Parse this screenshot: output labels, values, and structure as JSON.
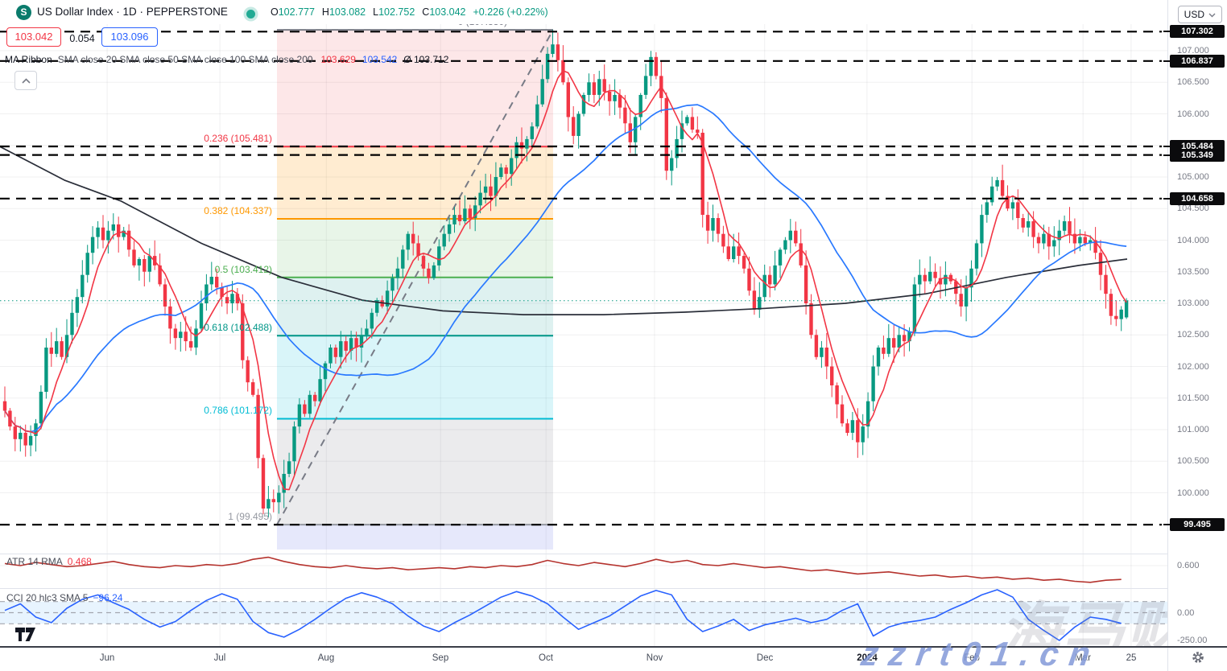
{
  "header": {
    "symbol_logo": "S",
    "title": "US Dollar Index · 1D · PEPPERSTONE",
    "ohlc": {
      "o_label": "O",
      "o_value": "102.777",
      "h_label": "H",
      "h_value": "103.082",
      "l_label": "L",
      "l_value": "102.752",
      "c_label": "C",
      "c_value": "103.042",
      "change": "+0.226 (+0.22%)"
    },
    "sell_price": "103.042",
    "spread": "0.054",
    "buy_price": "103.096",
    "ma_ribbon": {
      "name": "MA Ribbon",
      "params": "SMA close 20 SMA close 50 SMA close 100 SMA close 200",
      "value_fast": "103.629",
      "value_mid": "103.542",
      "value_avg": "Ø 103.712"
    },
    "currency_selector": "USD"
  },
  "indicators": {
    "atr_label": "ATR 14 RMA",
    "atr_value": "0.468",
    "cci_label": "CCI 20 hlc3 SMA 5",
    "cci_value": "−96.24"
  },
  "axes": {
    "price_ticks": [
      {
        "label": "107.000",
        "price": 107.0
      },
      {
        "label": "106.500",
        "price": 106.5
      },
      {
        "label": "106.000",
        "price": 106.0
      },
      {
        "label": "105.000",
        "price": 105.0
      },
      {
        "label": "104.500",
        "price": 104.5
      },
      {
        "label": "104.000",
        "price": 104.0
      },
      {
        "label": "103.500",
        "price": 103.5
      },
      {
        "label": "103.000",
        "price": 103.0
      },
      {
        "label": "102.500",
        "price": 102.5
      },
      {
        "label": "102.000",
        "price": 102.0
      },
      {
        "label": "101.500",
        "price": 101.5
      },
      {
        "label": "101.000",
        "price": 101.0
      },
      {
        "label": "100.500",
        "price": 100.5
      },
      {
        "label": "100.000",
        "price": 100.0
      }
    ],
    "price_badges": [
      {
        "label": "107.302",
        "price": 107.302
      },
      {
        "label": "106.837",
        "price": 106.837
      },
      {
        "label": "105.484",
        "price": 105.484
      },
      {
        "label": "105.349",
        "price": 105.349
      },
      {
        "label": "104.658",
        "price": 104.658
      },
      {
        "label": "99.495",
        "price": 99.495
      }
    ],
    "atr_ticks": [
      {
        "label": "0.600",
        "value": 0.6
      }
    ],
    "cci_ticks": [
      {
        "label": "0.00",
        "value": 0
      },
      {
        "label": "-250.00",
        "value": -250
      }
    ],
    "time_ticks": [
      {
        "label": "Jun",
        "i": 19.8
      },
      {
        "label": "Jul",
        "i": 41.6
      },
      {
        "label": "Aug",
        "i": 62.2
      },
      {
        "label": "Sep",
        "i": 84.3
      },
      {
        "label": "Oct",
        "i": 104.7
      },
      {
        "label": "Nov",
        "i": 125.7
      },
      {
        "label": "Dec",
        "i": 147.0
      },
      {
        "label": "2024",
        "i": 166.8,
        "bold": true
      },
      {
        "label": "Feb",
        "i": 187.1
      },
      {
        "label": "Mar",
        "i": 208.6
      },
      {
        "label": "25",
        "i": 217.9
      }
    ]
  },
  "watermarks": {
    "cjk": "海马财经",
    "site": "zzrt01.cn"
  },
  "colors": {
    "up": "#089981",
    "down": "#f23645",
    "ma_fast": "#f23645",
    "ma_mid": "#2979ff",
    "ma_slow": "#2a2e39",
    "atr": "#b5332e",
    "cci": "#2962ff",
    "grid": "rgba(42,46,57,0.07)",
    "alert": "#000000",
    "trend": "#787b86",
    "badge_bg": "#0b0b0d",
    "cci_band": "rgba(33,150,243,0.10)"
  },
  "chart_data": {
    "type": "candlestick",
    "symbol": "US Dollar Index",
    "timeframe": "1D",
    "broker": "PEPPERSTONE",
    "ylim": [
      99.1,
      107.45
    ],
    "x_labels": [
      "Jun",
      "Jul",
      "Aug",
      "Sep",
      "Oct",
      "Nov",
      "Dec",
      "2024",
      "Feb",
      "Mar",
      "25"
    ],
    "first_open": 101.45,
    "closes": [
      101.3,
      101.05,
      100.85,
      100.95,
      100.75,
      100.9,
      101.1,
      101.6,
      102.3,
      102.2,
      102.4,
      102.15,
      102.5,
      102.85,
      103.1,
      103.45,
      103.8,
      104.05,
      104.2,
      104.0,
      104.15,
      104.25,
      104.05,
      104.15,
      103.85,
      103.6,
      103.7,
      103.5,
      103.75,
      103.6,
      103.3,
      102.95,
      102.6,
      102.45,
      102.55,
      102.4,
      102.3,
      102.6,
      103.0,
      103.3,
      103.42,
      103.25,
      103.1,
      103.0,
      103.15,
      103.0,
      102.1,
      101.75,
      101.55,
      100.55,
      99.75,
      99.9,
      99.85,
      100.0,
      100.3,
      100.5,
      101.05,
      101.4,
      101.25,
      101.55,
      101.45,
      101.8,
      102.05,
      102.3,
      102.15,
      102.4,
      102.25,
      102.45,
      102.3,
      102.5,
      102.6,
      102.85,
      103.05,
      102.95,
      103.2,
      103.4,
      103.55,
      103.85,
      104.1,
      103.95,
      103.75,
      103.55,
      103.4,
      103.6,
      103.9,
      104.1,
      104.25,
      104.4,
      104.3,
      104.5,
      104.35,
      104.55,
      104.75,
      104.85,
      104.7,
      105.0,
      105.15,
      105.05,
      105.3,
      105.55,
      105.45,
      105.6,
      105.8,
      106.15,
      106.55,
      106.95,
      107.1,
      106.85,
      106.5,
      105.95,
      105.65,
      106.0,
      106.3,
      106.5,
      106.3,
      106.55,
      106.35,
      106.2,
      106.3,
      106.1,
      105.85,
      105.55,
      105.95,
      106.3,
      106.6,
      106.9,
      106.6,
      106.25,
      105.1,
      105.3,
      105.6,
      105.85,
      105.95,
      105.75,
      105.7,
      104.4,
      104.15,
      104.35,
      104.1,
      103.9,
      103.7,
      103.9,
      103.75,
      103.55,
      103.2,
      102.9,
      103.1,
      103.45,
      103.3,
      103.6,
      103.85,
      104.0,
      104.15,
      103.95,
      103.6,
      103.0,
      102.5,
      102.15,
      102.3,
      102.0,
      101.7,
      101.4,
      101.1,
      100.95,
      101.15,
      100.8,
      101.05,
      101.45,
      102.0,
      102.3,
      102.2,
      102.45,
      102.3,
      102.5,
      102.4,
      102.55,
      103.3,
      103.45,
      103.35,
      103.5,
      103.4,
      103.3,
      103.45,
      103.35,
      103.15,
      102.95,
      103.25,
      103.55,
      103.95,
      104.4,
      104.6,
      104.85,
      104.95,
      104.7,
      104.5,
      104.6,
      104.35,
      104.2,
      104.3,
      104.05,
      103.95,
      104.1,
      103.9,
      104.0,
      104.15,
      104.3,
      104.1,
      103.95,
      104.05,
      103.95,
      104.0,
      103.8,
      103.45,
      103.15,
      102.8,
      102.75,
      102.9,
      103.04
    ],
    "last_ohlc": {
      "open": 102.777,
      "high": 103.082,
      "low": 102.752,
      "close": 103.042,
      "change": 0.226,
      "change_pct": 0.22
    },
    "price_line": 103.042,
    "alert_levels": [
      107.302,
      106.837,
      105.484,
      105.349,
      104.658,
      99.495
    ],
    "ma_ribbon_values": {
      "sma_fast": 103.629,
      "sma_mid": 103.542,
      "average": 103.712
    },
    "fib": {
      "x_range": [
        344,
        687
      ],
      "trend": [
        [
          344,
          99.495
        ],
        [
          687,
          107.33
        ]
      ],
      "levels": [
        {
          "label": "0 (107.330)",
          "value": 0,
          "price": 107.33,
          "color": "#787b86",
          "fill": "rgba(242,54,69,0.12)"
        },
        {
          "label": "0.236 (105.481)",
          "value": 0.236,
          "price": 105.481,
          "color": "#f23645",
          "fill": "rgba(255,152,0,0.18)"
        },
        {
          "label": "0.382 (104.337)",
          "value": 0.382,
          "price": 104.337,
          "color": "#ff9800",
          "fill": "rgba(76,175,80,0.13)"
        },
        {
          "label": "0.5 (103.412)",
          "value": 0.5,
          "price": 103.412,
          "color": "#4caf50",
          "fill": "rgba(0,150,136,0.13)"
        },
        {
          "label": "0.618 (102.488)",
          "value": 0.618,
          "price": 102.488,
          "color": "#009688",
          "fill": "rgba(0,188,212,0.15)"
        },
        {
          "label": "0.786 (101.172)",
          "value": 0.786,
          "price": 101.172,
          "color": "#00bcd4",
          "fill": "rgba(120,123,134,0.15)"
        },
        {
          "label": "1 (99.495)",
          "value": 1,
          "price": 99.495,
          "color": "#9598a1",
          "fill": "rgba(98,110,232,0.16)"
        }
      ]
    },
    "sma200_path": [
      [
        0,
        105.48
      ],
      [
        80,
        104.95
      ],
      [
        150,
        104.62
      ],
      [
        250,
        103.95
      ],
      [
        350,
        103.41
      ],
      [
        450,
        103.05
      ],
      [
        550,
        102.88
      ],
      [
        650,
        102.82
      ],
      [
        750,
        102.82
      ],
      [
        850,
        102.86
      ],
      [
        950,
        102.92
      ],
      [
        1050,
        103.0
      ],
      [
        1150,
        103.15
      ],
      [
        1250,
        103.41
      ],
      [
        1340,
        103.6
      ],
      [
        1400,
        103.7
      ]
    ],
    "atr_series": {
      "name": "ATR 14 RMA",
      "last": 0.468,
      "step": 3,
      "values": [
        0.62,
        0.6,
        0.63,
        0.61,
        0.59,
        0.6,
        0.62,
        0.64,
        0.61,
        0.59,
        0.58,
        0.6,
        0.59,
        0.61,
        0.6,
        0.62,
        0.66,
        0.68,
        0.64,
        0.61,
        0.59,
        0.58,
        0.6,
        0.58,
        0.57,
        0.58,
        0.56,
        0.57,
        0.58,
        0.57,
        0.59,
        0.58,
        0.6,
        0.59,
        0.61,
        0.65,
        0.62,
        0.6,
        0.63,
        0.61,
        0.59,
        0.62,
        0.66,
        0.63,
        0.65,
        0.61,
        0.6,
        0.62,
        0.6,
        0.58,
        0.59,
        0.57,
        0.55,
        0.56,
        0.54,
        0.52,
        0.53,
        0.54,
        0.52,
        0.5,
        0.51,
        0.49,
        0.5,
        0.48,
        0.49,
        0.47,
        0.48,
        0.46,
        0.47,
        0.45,
        0.44,
        0.46,
        0.468
      ]
    },
    "cci_series": {
      "name": "CCI 20 hlc3 SMA 5",
      "last": -96.24,
      "step": 3,
      "bands": [
        100,
        0,
        -100
      ],
      "values": [
        20,
        80,
        -40,
        -90,
        40,
        120,
        160,
        90,
        30,
        -60,
        -130,
        -80,
        20,
        110,
        170,
        120,
        -80,
        -180,
        -220,
        -150,
        -60,
        40,
        130,
        180,
        140,
        80,
        -30,
        -120,
        -170,
        -90,
        -20,
        60,
        140,
        190,
        150,
        80,
        -40,
        -150,
        -90,
        -30,
        60,
        150,
        200,
        160,
        -60,
        -170,
        -120,
        -60,
        -160,
        -110,
        -80,
        -50,
        -90,
        -60,
        20,
        80,
        -210,
        -130,
        -90,
        -70,
        -40,
        30,
        90,
        160,
        210,
        140,
        -60,
        -160,
        -250,
        -130,
        -40,
        -60,
        -96.24
      ]
    }
  }
}
